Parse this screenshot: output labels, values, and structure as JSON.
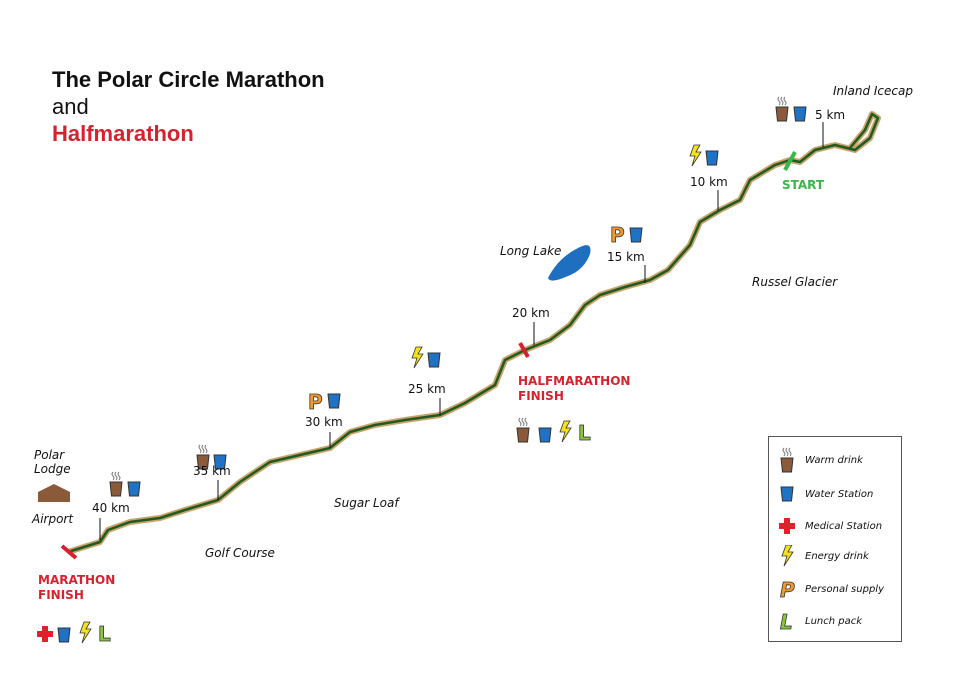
{
  "title": {
    "line1": "The Polar Circle Marathon",
    "line2": "and",
    "line3": "Halfmarathon"
  },
  "places": {
    "inland_icecap": "Inland Icecap",
    "long_lake": "Long Lake",
    "russel_glacier": "Russel Glacier",
    "sugar_loaf": "Sugar Loaf",
    "golf_course": "Golf Course",
    "polar_lodge": "Polar\nLodge",
    "airport": "Airport"
  },
  "markers": {
    "start": "START",
    "halfmarathon_finish": "HALFMARATHON\nFINISH",
    "marathon_finish": "MARATHON\nFINISH"
  },
  "km": [
    "5 km",
    "10 km",
    "15 km",
    "20 km",
    "25 km",
    "30 km",
    "35 km",
    "40 km"
  ],
  "legend": [
    {
      "icon": "warm-drink",
      "label": "Warm drink"
    },
    {
      "icon": "water-station",
      "label": "Water Station"
    },
    {
      "icon": "medical-station",
      "label": "Medical Station"
    },
    {
      "icon": "energy-drink",
      "label": "Energy drink"
    },
    {
      "icon": "personal-supply",
      "label": "Personal supply"
    },
    {
      "icon": "lunch-pack",
      "label": "Lunch pack"
    }
  ],
  "colors": {
    "route": "#1f5a1f",
    "route_halo": "#c9a36b",
    "finish": "#d4232f",
    "start": "#3ab54a",
    "lake": "#1f6fc0"
  }
}
